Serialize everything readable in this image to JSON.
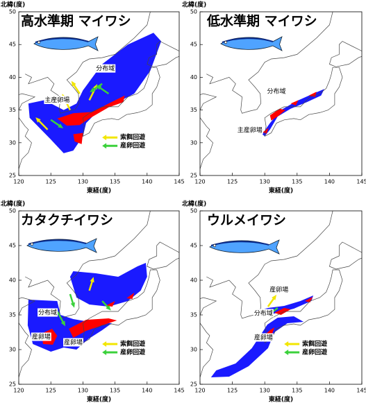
{
  "panels": [
    {
      "title": "高水準期 マイワシ",
      "y_axis_label": "北緯(度)",
      "x_axis_label": "東経(度)",
      "xticks": [
        120,
        125,
        130,
        135,
        140,
        145
      ],
      "yticks": [
        25,
        30,
        35,
        40,
        45,
        50
      ],
      "labels": [
        "分布域",
        "主産卵場"
      ],
      "legend": [
        "索餌回遊",
        "産卵回遊"
      ]
    },
    {
      "title": "低水準期 マイワシ",
      "y_axis_label": "北緯(度)",
      "x_axis_label": "東経(度)",
      "xticks": [
        120,
        125,
        130,
        135,
        140,
        145
      ],
      "yticks": [
        25,
        30,
        35,
        40,
        45,
        50
      ],
      "labels": [
        "分布域",
        "主産卵場"
      ]
    },
    {
      "title": "カタクチイワシ",
      "y_axis_label": "北緯(度)",
      "x_axis_label": "東経(度)",
      "xticks": [
        120,
        125,
        130,
        135,
        140,
        145
      ],
      "yticks": [
        25,
        30,
        35,
        40,
        45,
        50
      ],
      "labels": [
        "分布域",
        "産卵場",
        "産卵場"
      ],
      "legend": [
        "索餌回遊",
        "産卵回遊"
      ]
    },
    {
      "title": "ウルメイワシ",
      "y_axis_label": "北緯(度)",
      "x_axis_label": "東経(度)",
      "xticks": [
        120,
        125,
        130,
        135,
        140,
        145
      ],
      "yticks": [
        25,
        30,
        35,
        40,
        45,
        50
      ],
      "labels": [
        "産卵場",
        "分布域",
        "産卵場"
      ],
      "legend": [
        "索餌回遊",
        "産卵回遊"
      ]
    }
  ]
}
